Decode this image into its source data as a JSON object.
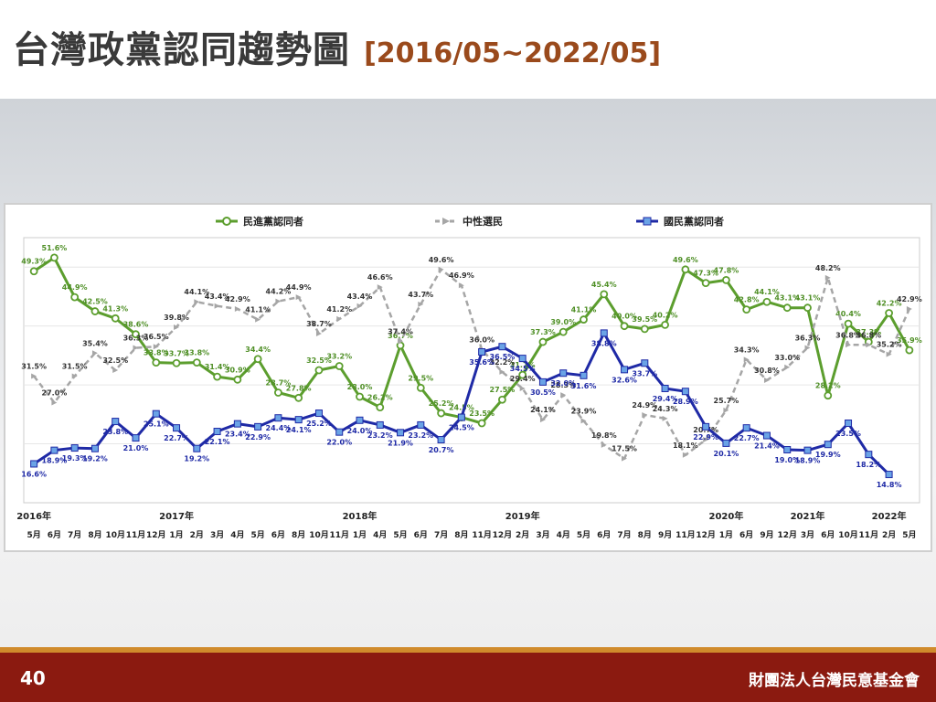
{
  "slide": {
    "title": "台灣政黨認同趨勢圖",
    "date_range": "[2016/05~2022/05]",
    "page_number": "40",
    "organization": "財團法人台灣民意基金會"
  },
  "colors": {
    "dpp": "#5c9e2e",
    "neutral": "#a6a6a6",
    "kmt": "#1f2aa6",
    "footer": "#8b1a10",
    "footer_stripe": "#d08b2c",
    "title_range": "#9a4a1c"
  },
  "chart_data": {
    "type": "line",
    "ylim": [
      10,
      55
    ],
    "grid": true,
    "legend_position": "top",
    "categories": [
      "5月",
      "6月",
      "7月",
      "8月",
      "10月",
      "11月",
      "12月",
      "1月",
      "2月",
      "3月",
      "4月",
      "5月",
      "6月",
      "8月",
      "10月",
      "11月",
      "1月",
      "4月",
      "5月",
      "6月",
      "7月",
      "8月",
      "11月",
      "12月",
      "2月",
      "3月",
      "4月",
      "5月",
      "6月",
      "7月",
      "8月",
      "9月",
      "11月",
      "12月",
      "1月",
      "6月",
      "9月",
      "12月",
      "3月",
      "6月",
      "10月",
      "11月",
      "2月",
      "5月"
    ],
    "year_labels": [
      {
        "label": "2016年",
        "index": 0
      },
      {
        "label": "2017年",
        "index": 7
      },
      {
        "label": "2018年",
        "index": 16
      },
      {
        "label": "2019年",
        "index": 24
      },
      {
        "label": "2020年",
        "index": 34
      },
      {
        "label": "2021年",
        "index": 38
      },
      {
        "label": "2022年",
        "index": 42
      }
    ],
    "series": [
      {
        "name": "民進黨認同者",
        "key": "dpp",
        "values": [
          49.3,
          51.6,
          44.9,
          42.5,
          41.3,
          38.6,
          33.8,
          33.7,
          33.8,
          31.4,
          30.9,
          34.4,
          28.7,
          27.8,
          32.5,
          33.2,
          28.0,
          26.2,
          36.7,
          29.5,
          25.2,
          24.5,
          23.5,
          27.5,
          31.7,
          37.3,
          39.0,
          41.1,
          45.4,
          40.0,
          39.5,
          40.2,
          49.6,
          47.3,
          47.8,
          42.8,
          44.1,
          43.1,
          43.1,
          28.2,
          40.4,
          37.3,
          42.2,
          35.9
        ],
        "labels": [
          "49.3%",
          "51.6%",
          "44.9%",
          "42.5%",
          "41.3%",
          "38.6%",
          "33.8%",
          "33.7%",
          "33.8%",
          "31.4%",
          "30.9%",
          "34.4%",
          "28.7%",
          "27.8%",
          "32.5%",
          "33.2%",
          "28.0%",
          "26.2%",
          "36.7%",
          "29.5%",
          "25.2%",
          "24.5%",
          "23.5%",
          "27.5%",
          "31.7%",
          "37.3%",
          "39.0%",
          "41.1%",
          "45.4%",
          "40.0%",
          "39.5%",
          "40.2%",
          "49.6%",
          "47.3%",
          "47.8%",
          "42.8%",
          "44.1%",
          "43.1%",
          "43.1%",
          "28.2%",
          "40.4%",
          "37.3%",
          "42.2%",
          "35.9%"
        ]
      },
      {
        "name": "中性選民",
        "key": "neutral",
        "values": [
          31.5,
          27.0,
          31.5,
          35.4,
          32.5,
          36.3,
          36.5,
          39.8,
          44.1,
          43.4,
          42.9,
          41.1,
          44.2,
          44.9,
          38.7,
          41.2,
          43.4,
          46.6,
          37.4,
          43.7,
          49.6,
          46.9,
          36.0,
          32.2,
          29.4,
          24.1,
          28.3,
          23.9,
          19.8,
          17.5,
          24.9,
          24.3,
          18.1,
          20.7,
          25.7,
          34.3,
          30.8,
          33.0,
          36.3,
          48.2,
          36.8,
          36.8,
          35.2,
          42.9
        ],
        "labels": [
          "31.5%",
          "27.0%",
          "31.5%",
          "35.4%",
          "32.5%",
          "36.3%",
          "36.5%",
          "39.8%",
          "44.1%",
          "43.4%",
          "42.9%",
          "41.1%",
          "44.2%",
          "44.9%",
          "38.7%",
          "41.2%",
          "43.4%",
          "46.6%",
          "37.4%",
          "43.7%",
          "49.6%",
          "46.9%",
          "36.0%",
          "32.2%",
          "29.4%",
          "24.1%",
          "28.3%",
          "23.9%",
          "19.8%",
          "17.5%",
          "24.9%",
          "24.3%",
          "18.1%",
          "20.7%",
          "25.7%",
          "34.3%",
          "30.8%",
          "33.0%",
          "36.3%",
          "48.2%",
          "36.8%",
          "36.8%",
          "35.2%",
          "42.9%"
        ]
      },
      {
        "name": "國民黨認同者",
        "key": "kmt",
        "values": [
          16.6,
          18.9,
          19.3,
          19.2,
          23.8,
          21.0,
          25.1,
          22.7,
          19.2,
          22.1,
          23.4,
          22.9,
          24.4,
          24.1,
          25.2,
          22.0,
          24.0,
          23.2,
          21.9,
          23.2,
          20.7,
          24.5,
          35.6,
          36.5,
          34.5,
          30.5,
          32.0,
          31.6,
          38.8,
          32.6,
          33.7,
          29.4,
          28.9,
          22.9,
          20.1,
          22.7,
          21.4,
          19.0,
          18.9,
          19.9,
          23.5,
          18.2,
          14.8,
          null
        ],
        "labels": [
          "16.6%",
          "18.9%",
          "19.3%",
          "19.2%",
          "23.8%",
          "21.0%",
          "25.1%",
          "22.7%",
          "19.2%",
          "22.1%",
          "23.4%",
          "22.9%",
          "24.4%",
          "24.1%",
          "25.2%",
          "22.0%",
          "24.0%",
          "23.2%",
          "21.9%",
          "23.2%",
          "20.7%",
          "24.5%",
          "35.6%",
          "36.5%",
          "34.5%",
          "30.5%",
          "32.0%",
          "31.6%",
          "38.8%",
          "32.6%",
          "33.7%",
          "29.4%",
          "28.9%",
          "22.9%",
          "20.1%",
          "22.7%",
          "21.4%",
          "19.0%",
          "18.9%",
          "19.9%",
          "23.5%",
          "18.2%",
          "14.8%",
          ""
        ]
      }
    ]
  }
}
